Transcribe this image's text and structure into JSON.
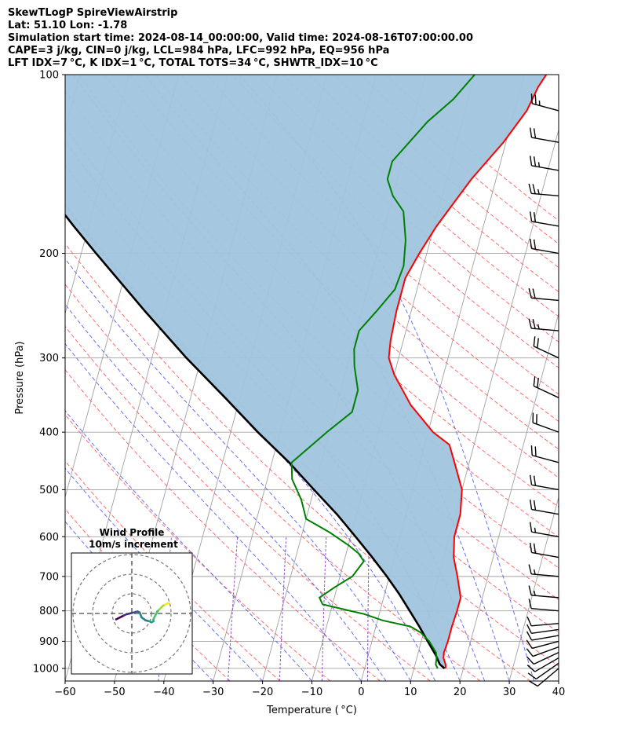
{
  "header": {
    "line1": "SkewTLogP SpireViewAirstrip",
    "line2": "Lat: 51.10   Lon: -1.78",
    "line3": "Simulation start time: 2024-08-14_00:00:00, Valid time: 2024-08-16T07:00:00.00",
    "line4": "CAPE=3 j/kg, CIN=0 j/kg, LCL=984 hPa, LFC=992 hPa, EQ=956 hPa",
    "line5": "LFT IDX=7 °C, K IDX=1 °C, TOTAL TOTS=34 °C, SHWTR_IDX=10 °C"
  },
  "chart_data": {
    "type": "skewt",
    "xlabel": "Temperature ( °C)",
    "ylabel": "Pressure (hPa)",
    "xlim": [
      -60,
      40
    ],
    "ylim": [
      1050,
      100
    ],
    "x_ticks": [
      "−60",
      "−50",
      "−40",
      "−30",
      "−20",
      "−10",
      "0",
      "10",
      "20",
      "30",
      "40"
    ],
    "x_tick_values": [
      -60,
      -50,
      -40,
      -30,
      -20,
      -10,
      0,
      10,
      20,
      30,
      40
    ],
    "y_ticks": [
      "1000",
      "900",
      "800",
      "700",
      "600",
      "500",
      "400",
      "300",
      "200",
      "100"
    ],
    "y_tick_values": [
      1000,
      900,
      800,
      700,
      600,
      500,
      400,
      300,
      200,
      100
    ],
    "grid": true,
    "colors": {
      "temperature": "#ff0000",
      "dewpoint": "#008000",
      "parcel": "#000000",
      "cape_fill": "#a0c4de",
      "dry_adiabats": "#ff5555",
      "moist_adiabats": "#4a5cf0",
      "mixing_ratio": "#8a3fc2",
      "isotherms": "#a0a0a0"
    },
    "series": [
      {
        "key": "temperature",
        "pressure": [
          1000,
          985,
          960,
          940,
          900,
          850,
          800,
          760,
          700,
          650,
          600,
          550,
          500,
          450,
          420,
          400,
          360,
          320,
          300,
          280,
          250,
          220,
          200,
          180,
          150,
          130,
          115,
          105,
          100
        ],
        "values": [
          16.4,
          16.2,
          15.4,
          15.2,
          15.4,
          15.4,
          15.6,
          15.6,
          13.8,
          12.0,
          11.0,
          11.0,
          10.0,
          7.0,
          5.0,
          1.0,
          -5.0,
          -10.0,
          -12.0,
          -12.6,
          -13.0,
          -13.0,
          -11.5,
          -9.5,
          -5.0,
          -0.5,
          2.5,
          3.5,
          4.5
        ]
      },
      {
        "key": "dewpoint",
        "pressure": [
          1000,
          985,
          960,
          940,
          900,
          870,
          850,
          830,
          810,
          800,
          780,
          760,
          730,
          700,
          660,
          640,
          620,
          590,
          560,
          520,
          480,
          450,
          400,
          370,
          340,
          310,
          290,
          270,
          250,
          230,
          210,
          190,
          170,
          160,
          150,
          140,
          120,
          110,
          100
        ],
        "values": [
          14.8,
          14.2,
          14.0,
          13.6,
          11.6,
          9.4,
          7.0,
          1.0,
          -3.0,
          -6.0,
          -12.0,
          -13.0,
          -10.5,
          -7.5,
          -6.0,
          -7.5,
          -10.0,
          -14.5,
          -20.0,
          -22.0,
          -25.0,
          -26.0,
          -20.5,
          -16.5,
          -16.5,
          -18.5,
          -19.5,
          -19.5,
          -17.0,
          -14.5,
          -14.0,
          -15.0,
          -17.0,
          -20.0,
          -22.0,
          -22.0,
          -17.0,
          -13.0,
          -10.0
        ]
      },
      {
        "key": "parcel",
        "pressure": [
          1000,
          984,
          950,
          900,
          850,
          800,
          750,
          700,
          650,
          600,
          550,
          500,
          450,
          400,
          350,
          300,
          250,
          200,
          180,
          150,
          130,
          115,
          100
        ],
        "values": [
          16.2,
          15.0,
          13.7,
          11.3,
          8.8,
          6.0,
          3.0,
          -0.5,
          -4.5,
          -9.0,
          -14.0,
          -20.0,
          -26.5,
          -34.5,
          -43.0,
          -53.0,
          -64.0,
          -77.0,
          -83.0,
          -93.0,
          -101.0,
          -107.0,
          -114.0
        ]
      }
    ],
    "wind_barbs": [
      {
        "pressure": 1000,
        "speed_kt": 10,
        "dir_deg": 230
      },
      {
        "pressure": 980,
        "speed_kt": 10,
        "dir_deg": 235
      },
      {
        "pressure": 960,
        "speed_kt": 10,
        "dir_deg": 240
      },
      {
        "pressure": 940,
        "speed_kt": 10,
        "dir_deg": 245
      },
      {
        "pressure": 920,
        "speed_kt": 10,
        "dir_deg": 250
      },
      {
        "pressure": 900,
        "speed_kt": 10,
        "dir_deg": 255
      },
      {
        "pressure": 880,
        "speed_kt": 10,
        "dir_deg": 260
      },
      {
        "pressure": 860,
        "speed_kt": 10,
        "dir_deg": 262
      },
      {
        "pressure": 840,
        "speed_kt": 10,
        "dir_deg": 265
      },
      {
        "pressure": 800,
        "speed_kt": 10,
        "dir_deg": 275
      },
      {
        "pressure": 760,
        "speed_kt": 15,
        "dir_deg": 275
      },
      {
        "pressure": 700,
        "speed_kt": 15,
        "dir_deg": 275
      },
      {
        "pressure": 650,
        "speed_kt": 20,
        "dir_deg": 280
      },
      {
        "pressure": 600,
        "speed_kt": 15,
        "dir_deg": 280
      },
      {
        "pressure": 550,
        "speed_kt": 20,
        "dir_deg": 280
      },
      {
        "pressure": 500,
        "speed_kt": 20,
        "dir_deg": 280
      },
      {
        "pressure": 450,
        "speed_kt": 20,
        "dir_deg": 285
      },
      {
        "pressure": 400,
        "speed_kt": 20,
        "dir_deg": 290
      },
      {
        "pressure": 350,
        "speed_kt": 20,
        "dir_deg": 295
      },
      {
        "pressure": 300,
        "speed_kt": 20,
        "dir_deg": 295
      },
      {
        "pressure": 270,
        "speed_kt": 25,
        "dir_deg": 275
      },
      {
        "pressure": 240,
        "speed_kt": 20,
        "dir_deg": 275
      },
      {
        "pressure": 200,
        "speed_kt": 20,
        "dir_deg": 280
      },
      {
        "pressure": 180,
        "speed_kt": 20,
        "dir_deg": 280
      },
      {
        "pressure": 160,
        "speed_kt": 25,
        "dir_deg": 275
      },
      {
        "pressure": 145,
        "speed_kt": 25,
        "dir_deg": 280
      },
      {
        "pressure": 130,
        "speed_kt": 20,
        "dir_deg": 280
      },
      {
        "pressure": 115,
        "speed_kt": 25,
        "dir_deg": 285
      }
    ],
    "hodograph": {
      "title": "Wind Profile",
      "subtitle": "10m/s increment",
      "ring_increment_ms": 10,
      "rings": 3,
      "colormap": "viridis",
      "u": [
        -8,
        -7,
        -6,
        -5,
        -4,
        -3,
        -1,
        1,
        2,
        3,
        4,
        5,
        7,
        9,
        10,
        11,
        11,
        12,
        13,
        14,
        15,
        16,
        17,
        18,
        18,
        19
      ],
      "v": [
        -3,
        -2.5,
        -2,
        -1.5,
        -1,
        -0.5,
        0,
        0.5,
        0.8,
        1,
        0.5,
        -2,
        -3.5,
        -4,
        -4.5,
        -4,
        -3,
        -1,
        1,
        2,
        3,
        4,
        4.5,
        5,
        5,
        5.2
      ]
    }
  }
}
